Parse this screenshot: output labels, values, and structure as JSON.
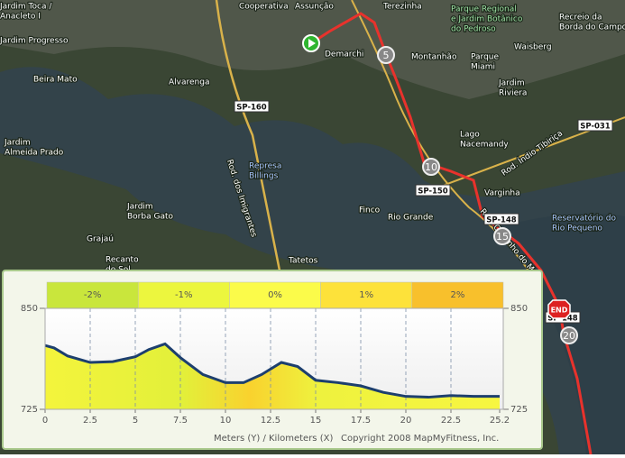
{
  "map": {
    "places": [
      {
        "lines": [
          "Cooperativa"
        ]
      },
      {
        "lines": [
          "Assunção"
        ]
      },
      {
        "lines": [
          "Terezinha"
        ]
      },
      {
        "lines": [
          "Parque Regional",
          "e Jardim Botânico",
          "do Pedroso"
        ]
      },
      {
        "lines": [
          "Recreio da",
          "Borda do Campo"
        ]
      },
      {
        "lines": [
          "Demarchi"
        ]
      },
      {
        "lines": [
          "Montanhão"
        ]
      },
      {
        "lines": [
          "Parque",
          "Miami"
        ]
      },
      {
        "lines": [
          "Waisberg"
        ]
      },
      {
        "lines": [
          "Jardim",
          "Riviera"
        ]
      },
      {
        "lines": [
          "Alvarenga"
        ]
      },
      {
        "lines": [
          "Beira Mato"
        ]
      },
      {
        "lines": [
          "Jardim Toca /",
          "Anacleto I"
        ]
      },
      {
        "lines": [
          "Jardim Progresso"
        ]
      },
      {
        "lines": [
          "Jardim",
          "Almeida Prado"
        ]
      },
      {
        "lines": [
          "Represa",
          "Billings"
        ]
      },
      {
        "lines": [
          "Lago",
          "Nacemandy"
        ]
      },
      {
        "lines": [
          "Varginha"
        ]
      },
      {
        "lines": [
          "Finco"
        ]
      },
      {
        "lines": [
          "Rio Grande"
        ]
      },
      {
        "lines": [
          "Reservatório do",
          "Rio Pequeno"
        ]
      },
      {
        "lines": [
          "Grajaú"
        ]
      },
      {
        "lines": [
          "Jardim",
          "Borba Gato"
        ]
      },
      {
        "lines": [
          "Recanto",
          "do Sol"
        ]
      },
      {
        "lines": [
          "Tatetos"
        ]
      },
      {
        "lines": [
          "Rod. dos Imigrantes"
        ]
      },
      {
        "lines": [
          "Rod. Índio Tibiriça"
        ]
      },
      {
        "lines": [
          "Rod. Caminho do Mar"
        ]
      }
    ],
    "roads": [
      "SP-160",
      "SP-150",
      "SP-148",
      "SP-148",
      "SP-031"
    ],
    "markers": [
      "5",
      "10",
      "15",
      "END",
      "20"
    ]
  },
  "chart_data": {
    "type": "area",
    "x_label": "Meters (Y) / Kilometers (X)",
    "copyright": "Copyright 2008 MapMyFitness, Inc.",
    "grades": {
      "categories": [
        "-2%",
        "-1%",
        "0%",
        "1%",
        "2%"
      ],
      "colors": [
        "#c9e63c",
        "#ecf63e",
        "#fbfb4a",
        "#fde23a",
        "#f8c02c"
      ]
    },
    "x": [
      0,
      0.5,
      1.25,
      2.5,
      3.75,
      5,
      5.75,
      6.65,
      7.5,
      8.75,
      10,
      11,
      12,
      13.1,
      14,
      15,
      16.25,
      17.5,
      18.75,
      20,
      21.25,
      22.5,
      23.75,
      25.2
    ],
    "values": [
      804,
      801,
      791,
      783,
      784,
      790,
      799,
      806,
      789,
      768,
      758,
      758,
      768,
      783,
      778,
      761,
      758,
      754,
      746,
      741,
      740,
      742,
      741,
      741
    ],
    "color": "#1d3f6e",
    "xlim": [
      0,
      25.2
    ],
    "ylim": [
      725,
      850
    ],
    "xticks": [
      0,
      2.5,
      5,
      7.5,
      10,
      12.5,
      15,
      17.5,
      20,
      22.5,
      25.2
    ],
    "yticks": [
      725,
      850
    ],
    "grid": true
  }
}
